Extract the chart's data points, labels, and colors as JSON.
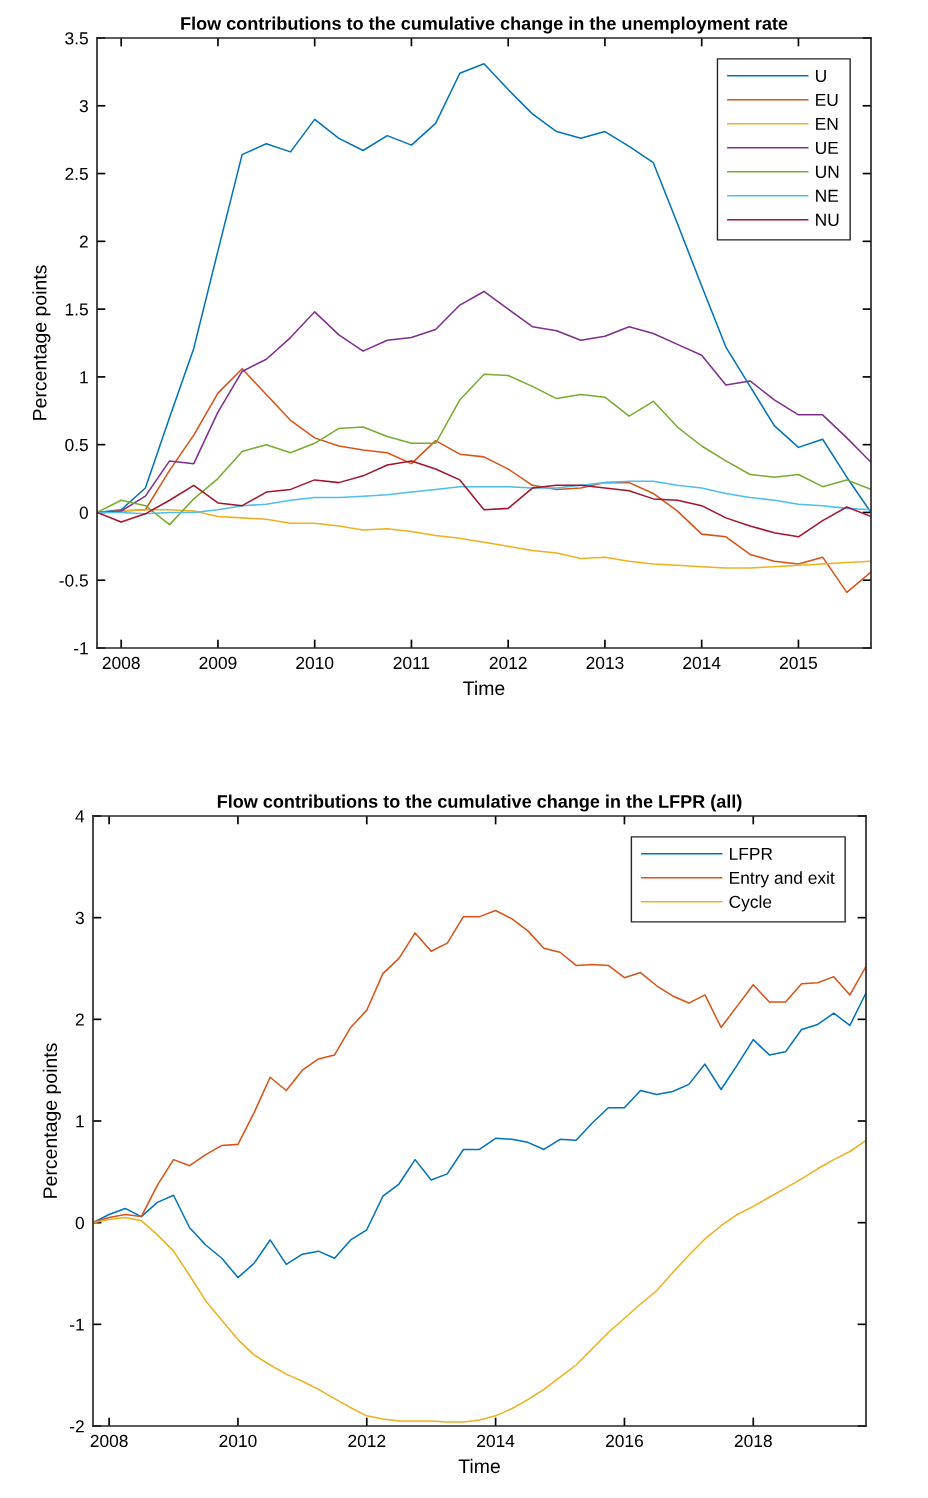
{
  "chart_data": [
    {
      "type": "line",
      "title": "Flow contributions to the cumulative change in the unemployment rate",
      "xlabel": "Time",
      "ylabel": "Percentage points",
      "legend": "top right",
      "x": [
        2007.75,
        2008,
        2008.25,
        2008.5,
        2008.75,
        2009,
        2009.25,
        2009.5,
        2009.75,
        2010,
        2010.25,
        2010.5,
        2010.75,
        2011,
        2011.25,
        2011.5,
        2011.75,
        2012,
        2012.25,
        2012.5,
        2012.75,
        2013,
        2013.25,
        2013.5,
        2013.75,
        2014,
        2014.25,
        2014.5,
        2014.75,
        2015,
        2015.25,
        2015.5,
        2015.75
      ],
      "xlim": [
        2007.75,
        2015.75
      ],
      "xticks": [
        2008,
        2009,
        2010,
        2011,
        2012,
        2013,
        2014,
        2015
      ],
      "ylim": [
        -1,
        3.5
      ],
      "yticks": [
        -1,
        -0.5,
        0,
        0.5,
        1,
        1.5,
        2,
        2.5,
        3,
        3.5
      ],
      "series": [
        {
          "name": "U",
          "color": "#0072bd",
          "values": [
            0,
            0.02,
            0.18,
            0.7,
            1.21,
            1.93,
            2.64,
            2.72,
            2.66,
            2.9,
            2.76,
            2.67,
            2.78,
            2.71,
            2.87,
            3.24,
            3.31,
            3.12,
            2.94,
            2.81,
            2.76,
            2.81,
            2.7,
            2.58,
            2.13,
            1.67,
            1.22,
            0.93,
            0.64,
            0.48,
            0.54,
            0.26,
            0.0
          ]
        },
        {
          "name": "EU",
          "color": "#d95319",
          "values": [
            0,
            0.01,
            0.02,
            0.31,
            0.57,
            0.88,
            1.06,
            0.87,
            0.68,
            0.55,
            0.49,
            0.46,
            0.44,
            0.36,
            0.53,
            0.43,
            0.41,
            0.32,
            0.2,
            0.17,
            0.18,
            0.22,
            0.22,
            0.14,
            0.01,
            -0.16,
            -0.18,
            -0.31,
            -0.36,
            -0.38,
            -0.33,
            -0.59,
            -0.44
          ]
        },
        {
          "name": "EN",
          "color": "#edb120",
          "values": [
            0,
            0.01,
            0.02,
            0.02,
            0.01,
            -0.03,
            -0.04,
            -0.05,
            -0.08,
            -0.08,
            -0.1,
            -0.13,
            -0.12,
            -0.14,
            -0.17,
            -0.19,
            -0.22,
            -0.25,
            -0.28,
            -0.3,
            -0.34,
            -0.33,
            -0.36,
            -0.38,
            -0.39,
            -0.4,
            -0.41,
            -0.41,
            -0.4,
            -0.39,
            -0.38,
            -0.37,
            -0.36
          ]
        },
        {
          "name": "UE",
          "color": "#7e2f8e",
          "values": [
            0,
            0.01,
            0.12,
            0.38,
            0.36,
            0.74,
            1.04,
            1.13,
            1.29,
            1.48,
            1.31,
            1.19,
            1.27,
            1.29,
            1.35,
            1.53,
            1.63,
            1.5,
            1.37,
            1.34,
            1.27,
            1.3,
            1.37,
            1.32,
            1.24,
            1.16,
            0.94,
            0.97,
            0.83,
            0.72,
            0.72,
            0.55,
            0.37
          ]
        },
        {
          "name": "UN",
          "color": "#77ac30",
          "values": [
            0,
            0.09,
            0.05,
            -0.09,
            0.1,
            0.25,
            0.45,
            0.5,
            0.44,
            0.51,
            0.62,
            0.63,
            0.56,
            0.51,
            0.51,
            0.83,
            1.02,
            1.01,
            0.93,
            0.84,
            0.87,
            0.85,
            0.71,
            0.82,
            0.63,
            0.49,
            0.38,
            0.28,
            0.26,
            0.28,
            0.19,
            0.24,
            0.17
          ]
        },
        {
          "name": "NE",
          "color": "#4dbeee",
          "values": [
            0,
            0,
            -0.01,
            0,
            0,
            0.02,
            0.05,
            0.06,
            0.09,
            0.11,
            0.11,
            0.12,
            0.13,
            0.15,
            0.17,
            0.19,
            0.19,
            0.19,
            0.18,
            0.18,
            0.2,
            0.22,
            0.23,
            0.23,
            0.2,
            0.18,
            0.14,
            0.11,
            0.09,
            0.06,
            0.05,
            0.03,
            0.02
          ]
        },
        {
          "name": "NU",
          "color": "#a2142f",
          "values": [
            0,
            -0.07,
            -0.01,
            0.09,
            0.2,
            0.07,
            0.05,
            0.15,
            0.17,
            0.24,
            0.22,
            0.27,
            0.35,
            0.38,
            0.32,
            0.24,
            0.02,
            0.03,
            0.18,
            0.2,
            0.2,
            0.18,
            0.16,
            0.1,
            0.09,
            0.05,
            -0.04,
            -0.1,
            -0.15,
            -0.18,
            -0.06,
            0.04,
            -0.03
          ]
        }
      ]
    },
    {
      "type": "line",
      "title": "Flow contributions to the cumulative change in the LFPR (all)",
      "xlabel": "Time",
      "ylabel": "Percentage points",
      "legend": "top right",
      "x": [
        2007.75,
        2008,
        2008.25,
        2008.5,
        2008.75,
        2009,
        2009.25,
        2009.5,
        2009.75,
        2010,
        2010.25,
        2010.5,
        2010.75,
        2011,
        2011.25,
        2011.5,
        2011.75,
        2012,
        2012.25,
        2012.5,
        2012.75,
        2013,
        2013.25,
        2013.5,
        2013.75,
        2014,
        2014.25,
        2014.5,
        2014.75,
        2015,
        2015.25,
        2015.5,
        2015.75,
        2016,
        2016.25,
        2016.5,
        2016.75,
        2017,
        2017.25,
        2017.5,
        2017.75,
        2018,
        2018.25,
        2018.5,
        2018.75,
        2019,
        2019.25,
        2019.5,
        2019.75
      ],
      "xlim": [
        2007.75,
        2019.75
      ],
      "xticks": [
        2008,
        2010,
        2012,
        2014,
        2016,
        2018
      ],
      "ylim": [
        -2,
        4
      ],
      "yticks": [
        -2,
        -1,
        0,
        1,
        2,
        3,
        4
      ],
      "series": [
        {
          "name": "LFPR",
          "color": "#0072bd",
          "values": [
            0,
            0.08,
            0.14,
            0.06,
            0.2,
            0.27,
            -0.05,
            -0.22,
            -0.35,
            -0.54,
            -0.4,
            -0.17,
            -0.41,
            -0.31,
            -0.28,
            -0.35,
            -0.17,
            -0.07,
            0.26,
            0.38,
            0.62,
            0.42,
            0.48,
            0.72,
            0.72,
            0.83,
            0.82,
            0.79,
            0.72,
            0.82,
            0.81,
            0.98,
            1.13,
            1.13,
            1.3,
            1.26,
            1.29,
            1.36,
            1.56,
            1.31,
            1.55,
            1.8,
            1.65,
            1.68,
            1.9,
            1.95,
            2.06,
            1.94,
            2.26
          ]
        },
        {
          "name": "Entry and exit",
          "color": "#d95319",
          "values": [
            0,
            0.05,
            0.08,
            0.06,
            0.37,
            0.62,
            0.56,
            0.67,
            0.76,
            0.77,
            1.08,
            1.43,
            1.3,
            1.5,
            1.61,
            1.65,
            1.92,
            2.09,
            2.45,
            2.6,
            2.85,
            2.67,
            2.75,
            3.01,
            3.01,
            3.07,
            2.99,
            2.87,
            2.7,
            2.66,
            2.53,
            2.54,
            2.53,
            2.41,
            2.46,
            2.33,
            2.23,
            2.16,
            2.24,
            1.92,
            2.13,
            2.34,
            2.17,
            2.17,
            2.35,
            2.36,
            2.42,
            2.24,
            2.52
          ]
        },
        {
          "name": "Cycle",
          "color": "#edb120",
          "values": [
            0,
            0.03,
            0.05,
            0.02,
            -0.12,
            -0.28,
            -0.52,
            -0.77,
            -0.96,
            -1.15,
            -1.3,
            -1.4,
            -1.49,
            -1.56,
            -1.64,
            -1.73,
            -1.82,
            -1.9,
            -1.93,
            -1.95,
            -1.95,
            -1.95,
            -1.96,
            -1.96,
            -1.94,
            -1.9,
            -1.83,
            -1.74,
            -1.64,
            -1.52,
            -1.4,
            -1.24,
            -1.08,
            -0.94,
            -0.8,
            -0.67,
            -0.49,
            -0.32,
            -0.16,
            -0.03,
            0.08,
            0.16,
            0.25,
            0.34,
            0.43,
            0.53,
            0.62,
            0.7,
            0.81
          ]
        }
      ]
    }
  ]
}
